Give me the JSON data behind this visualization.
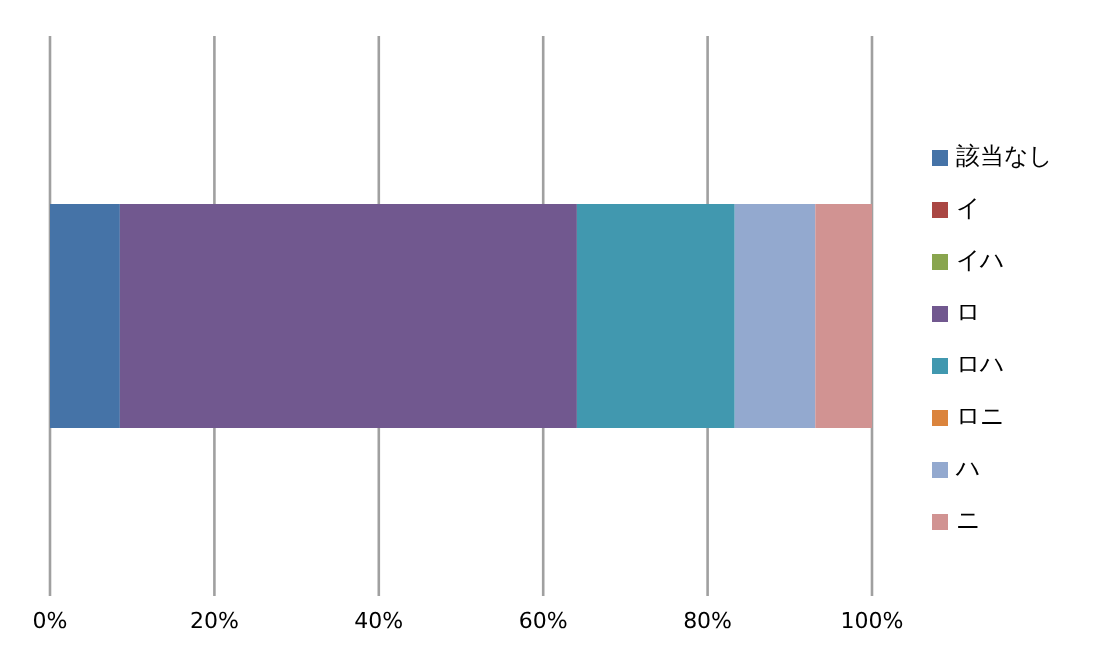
{
  "chart_data": {
    "type": "bar",
    "orientation": "horizontal",
    "stacked": true,
    "categories": [
      null
    ],
    "series": [
      {
        "name": "該当なし",
        "color": "#4573a7",
        "values": [
          8.5
        ]
      },
      {
        "name": "イ",
        "color": "#aa4643",
        "values": [
          0
        ]
      },
      {
        "name": "イハ",
        "color": "#89a54e",
        "values": [
          0
        ]
      },
      {
        "name": "ロ",
        "color": "#71588f",
        "values": [
          55.6
        ]
      },
      {
        "name": "ロハ",
        "color": "#4198af",
        "values": [
          19.2
        ]
      },
      {
        "name": "ロニ",
        "color": "#db843d",
        "values": [
          0
        ]
      },
      {
        "name": "ハ",
        "color": "#93a9cf",
        "values": [
          9.8
        ]
      },
      {
        "name": "ニ",
        "color": "#d19392",
        "values": [
          6.9
        ]
      }
    ],
    "xlim": [
      0,
      100
    ],
    "xticks": [
      {
        "value": 0,
        "label": "0%"
      },
      {
        "value": 20,
        "label": "20%"
      },
      {
        "value": 40,
        "label": "40%"
      },
      {
        "value": 60,
        "label": "60%"
      },
      {
        "value": 80,
        "label": "80%"
      },
      {
        "value": 100,
        "label": "100%"
      }
    ],
    "grid": "x",
    "legend": "right"
  }
}
